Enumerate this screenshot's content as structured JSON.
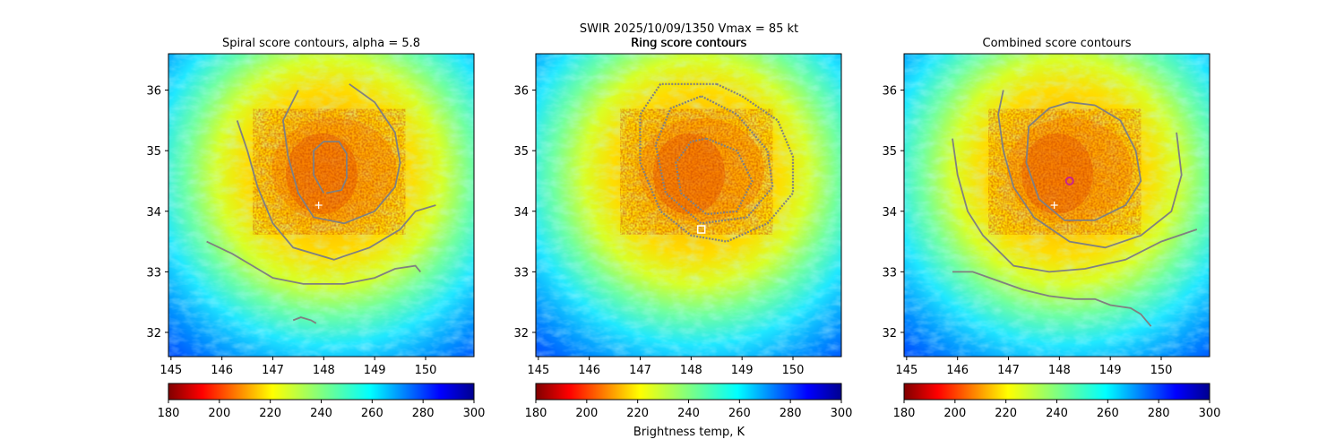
{
  "suptitle": {
    "line1": "SWIR  2025/10/09/1350    Vmax = 85 kt",
    "line2": "Ring score contours"
  },
  "colorbar_label": "Brightness temp, K",
  "chart_data": [
    {
      "type": "heatmap",
      "title": "Spiral score contours, alpha =  5.8",
      "xticks": [
        "145",
        "146",
        "147",
        "148",
        "149",
        "150"
      ],
      "yticks": [
        "32",
        "33",
        "34",
        "35",
        "36"
      ],
      "xlim": [
        144.95,
        150.95
      ],
      "ylim": [
        31.6,
        36.6
      ],
      "colorbar": {
        "cmap": "jet_r",
        "range": [
          180,
          300
        ],
        "ticks": [
          "180",
          "200",
          "220",
          "240",
          "260",
          "280",
          "300"
        ]
      },
      "contour_color": "#808080",
      "markers": [
        {
          "symbol": "+",
          "lon": 147.9,
          "lat": 34.1,
          "color": "#ffffff"
        }
      ],
      "contours": [
        [
          [
            148.0,
            34.3
          ],
          [
            147.8,
            34.6
          ],
          [
            147.8,
            35.0
          ],
          [
            148.0,
            35.15
          ],
          [
            148.3,
            35.15
          ],
          [
            148.45,
            34.95
          ],
          [
            148.45,
            34.55
          ],
          [
            148.35,
            34.35
          ],
          [
            148.05,
            34.3
          ]
        ],
        [
          [
            148.5,
            36.1
          ],
          [
            149.0,
            35.8
          ],
          [
            149.4,
            35.3
          ],
          [
            149.5,
            34.8
          ],
          [
            149.4,
            34.4
          ],
          [
            149.0,
            34.0
          ],
          [
            148.4,
            33.8
          ],
          [
            147.8,
            33.9
          ],
          [
            147.5,
            34.3
          ],
          [
            147.3,
            34.9
          ],
          [
            147.2,
            35.5
          ],
          [
            147.5,
            36.0
          ]
        ],
        [
          [
            146.3,
            35.5
          ],
          [
            146.5,
            35.0
          ],
          [
            146.7,
            34.4
          ],
          [
            147.0,
            33.8
          ],
          [
            147.4,
            33.4
          ],
          [
            148.2,
            33.2
          ],
          [
            148.9,
            33.4
          ],
          [
            149.5,
            33.7
          ],
          [
            149.8,
            34.0
          ],
          [
            150.2,
            34.1
          ]
        ],
        [
          [
            145.7,
            33.5
          ],
          [
            146.2,
            33.3
          ],
          [
            146.6,
            33.1
          ],
          [
            147.0,
            32.9
          ],
          [
            147.6,
            32.8
          ],
          [
            148.4,
            32.8
          ],
          [
            149.0,
            32.9
          ],
          [
            149.4,
            33.05
          ],
          [
            149.8,
            33.1
          ],
          [
            149.9,
            33.0
          ]
        ],
        [
          [
            147.4,
            32.2
          ],
          [
            147.55,
            32.25
          ],
          [
            147.75,
            32.2
          ],
          [
            147.85,
            32.15
          ]
        ]
      ]
    },
    {
      "type": "heatmap",
      "title": "Ring score contours",
      "xticks": [
        "145",
        "146",
        "147",
        "148",
        "149",
        "150"
      ],
      "yticks": [
        "32",
        "33",
        "34",
        "35",
        "36"
      ],
      "xlim": [
        144.95,
        150.95
      ],
      "ylim": [
        31.6,
        36.6
      ],
      "colorbar": {
        "cmap": "jet_r",
        "range": [
          180,
          300
        ],
        "ticks": [
          "180",
          "200",
          "220",
          "240",
          "260",
          "280",
          "300"
        ]
      },
      "contour_color": "#808080",
      "markers": [
        {
          "symbol": "square",
          "lon": 148.2,
          "lat": 33.7,
          "color": "#ffffff"
        }
      ],
      "contours": [
        [
          [
            148.5,
            36.1
          ],
          [
            149.0,
            35.9
          ],
          [
            149.7,
            35.5
          ],
          [
            150.0,
            34.9
          ],
          [
            150.0,
            34.3
          ],
          [
            149.5,
            33.8
          ],
          [
            148.7,
            33.5
          ],
          [
            148.0,
            33.6
          ],
          [
            147.4,
            34.0
          ],
          [
            147.0,
            34.8
          ],
          [
            147.0,
            35.6
          ],
          [
            147.4,
            36.1
          ],
          [
            148.5,
            36.1
          ]
        ],
        [
          [
            148.2,
            35.9
          ],
          [
            148.9,
            35.6
          ],
          [
            149.5,
            35.0
          ],
          [
            149.6,
            34.4
          ],
          [
            149.1,
            33.9
          ],
          [
            148.2,
            33.8
          ],
          [
            147.5,
            34.3
          ],
          [
            147.3,
            35.1
          ],
          [
            147.6,
            35.7
          ],
          [
            148.2,
            35.9
          ]
        ],
        [
          [
            148.3,
            35.2
          ],
          [
            148.9,
            35.0
          ],
          [
            149.2,
            34.5
          ],
          [
            148.9,
            34.0
          ],
          [
            148.3,
            33.95
          ],
          [
            147.8,
            34.3
          ],
          [
            147.7,
            34.8
          ],
          [
            148.0,
            35.15
          ],
          [
            148.3,
            35.2
          ]
        ]
      ]
    },
    {
      "type": "heatmap",
      "title": "Combined score contours",
      "xticks": [
        "145",
        "146",
        "147",
        "148",
        "149",
        "150"
      ],
      "yticks": [
        "32",
        "33",
        "34",
        "35",
        "36"
      ],
      "xlim": [
        144.95,
        150.95
      ],
      "ylim": [
        31.6,
        36.6
      ],
      "colorbar": {
        "cmap": "jet_r",
        "range": [
          180,
          300
        ],
        "ticks": [
          "180",
          "200",
          "220",
          "240",
          "260",
          "280",
          "300"
        ]
      },
      "contour_color": "#808080",
      "markers": [
        {
          "symbol": "+",
          "lon": 147.9,
          "lat": 34.1,
          "color": "#ffffff"
        },
        {
          "symbol": "circle",
          "lon": 148.2,
          "lat": 34.5,
          "color": "#c8238c"
        }
      ],
      "contours": [
        [
          [
            148.7,
            35.75
          ],
          [
            149.2,
            35.5
          ],
          [
            149.5,
            35.0
          ],
          [
            149.6,
            34.5
          ],
          [
            149.3,
            34.1
          ],
          [
            148.7,
            33.85
          ],
          [
            148.1,
            33.85
          ],
          [
            147.6,
            34.2
          ],
          [
            147.35,
            34.8
          ],
          [
            147.4,
            35.4
          ],
          [
            147.8,
            35.7
          ],
          [
            148.2,
            35.8
          ],
          [
            148.7,
            35.75
          ]
        ],
        [
          [
            146.9,
            36.0
          ],
          [
            146.8,
            35.6
          ],
          [
            146.9,
            35.0
          ],
          [
            147.1,
            34.4
          ],
          [
            147.5,
            33.9
          ],
          [
            148.2,
            33.5
          ],
          [
            148.9,
            33.4
          ],
          [
            149.6,
            33.6
          ],
          [
            150.2,
            34.0
          ],
          [
            150.4,
            34.6
          ],
          [
            150.3,
            35.3
          ]
        ],
        [
          [
            145.9,
            35.2
          ],
          [
            146.0,
            34.6
          ],
          [
            146.2,
            34.0
          ],
          [
            146.5,
            33.6
          ],
          [
            147.1,
            33.1
          ],
          [
            147.8,
            33.0
          ],
          [
            148.5,
            33.05
          ],
          [
            149.3,
            33.2
          ],
          [
            150.0,
            33.5
          ],
          [
            150.7,
            33.7
          ]
        ],
        [
          [
            145.9,
            33.0
          ],
          [
            146.3,
            33.0
          ],
          [
            146.8,
            32.85
          ],
          [
            147.3,
            32.7
          ],
          [
            147.8,
            32.6
          ],
          [
            148.3,
            32.55
          ],
          [
            148.7,
            32.55
          ],
          [
            149.0,
            32.45
          ],
          [
            149.4,
            32.4
          ],
          [
            149.6,
            32.3
          ],
          [
            149.8,
            32.1
          ]
        ]
      ]
    }
  ]
}
